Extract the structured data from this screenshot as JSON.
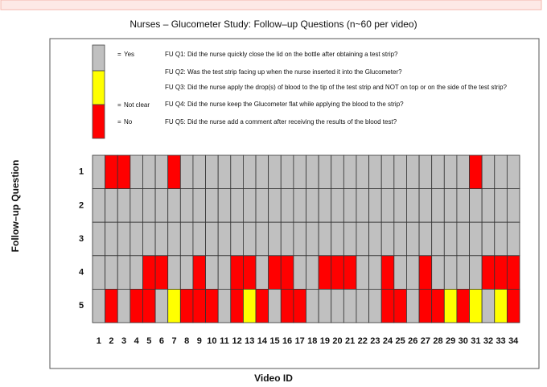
{
  "chart_data": {
    "type": "heatmap",
    "title": "Nurses – Glucometer Study: Follow–up Questions (n~60 per video)",
    "xlabel": "Video ID",
    "ylabel": "Follow–up Question",
    "x": [
      1,
      2,
      3,
      4,
      5,
      6,
      7,
      8,
      9,
      10,
      11,
      12,
      13,
      14,
      15,
      16,
      17,
      18,
      19,
      20,
      21,
      22,
      23,
      24,
      25,
      26,
      27,
      28,
      29,
      30,
      31,
      32,
      33,
      34
    ],
    "y": [
      1,
      2,
      3,
      4,
      5
    ],
    "legend_symbol": "=",
    "legend": [
      {
        "name": "Yes",
        "color": "#c0c0c0"
      },
      {
        "name": "Not clear",
        "color": "#ffff00"
      },
      {
        "name": "No",
        "color": "#ff0000"
      }
    ],
    "questions": [
      "FU Q1: Did the nurse quickly close the lid on the bottle after obtaining a test strip?",
      "FU Q2: Was the test strip facing up when the nurse inserted it into the Glucometer?",
      "FU Q3: Did the nurse apply the drop(s) of blood to the tip of the test strip and NOT on top or on the side of the test strip?",
      "FU Q4: Did the nurse keep the Glucometer flat while applying the blood to the strip?",
      "FU Q5: Did the nurse add a comment after receiving the results of the blood test?"
    ],
    "z": [
      [
        "Yes",
        "No",
        "No",
        "Yes",
        "Yes",
        "Yes",
        "No",
        "Yes",
        "Yes",
        "Yes",
        "Yes",
        "Yes",
        "Yes",
        "Yes",
        "Yes",
        "Yes",
        "Yes",
        "Yes",
        "Yes",
        "Yes",
        "Yes",
        "Yes",
        "Yes",
        "Yes",
        "Yes",
        "Yes",
        "Yes",
        "Yes",
        "Yes",
        "Yes",
        "No",
        "Yes",
        "Yes",
        "Yes"
      ],
      [
        "Yes",
        "Yes",
        "Yes",
        "Yes",
        "Yes",
        "Yes",
        "Yes",
        "Yes",
        "Yes",
        "Yes",
        "Yes",
        "Yes",
        "Yes",
        "Yes",
        "Yes",
        "Yes",
        "Yes",
        "Yes",
        "Yes",
        "Yes",
        "Yes",
        "Yes",
        "Yes",
        "Yes",
        "Yes",
        "Yes",
        "Yes",
        "Yes",
        "Yes",
        "Yes",
        "Yes",
        "Yes",
        "Yes",
        "Yes"
      ],
      [
        "Yes",
        "Yes",
        "Yes",
        "Yes",
        "Yes",
        "Yes",
        "Yes",
        "Yes",
        "Yes",
        "Yes",
        "Yes",
        "Yes",
        "Yes",
        "Yes",
        "Yes",
        "Yes",
        "Yes",
        "Yes",
        "Yes",
        "Yes",
        "Yes",
        "Yes",
        "Yes",
        "Yes",
        "Yes",
        "Yes",
        "Yes",
        "Yes",
        "Yes",
        "Yes",
        "Yes",
        "Yes",
        "Yes",
        "Yes"
      ],
      [
        "Yes",
        "Yes",
        "Yes",
        "Yes",
        "No",
        "No",
        "Yes",
        "Yes",
        "No",
        "Yes",
        "Yes",
        "No",
        "No",
        "Yes",
        "No",
        "No",
        "Yes",
        "Yes",
        "No",
        "No",
        "No",
        "Yes",
        "Yes",
        "No",
        "Yes",
        "Yes",
        "No",
        "Yes",
        "Yes",
        "Yes",
        "Yes",
        "No",
        "No",
        "No"
      ],
      [
        "Yes",
        "No",
        "Yes",
        "No",
        "No",
        "Yes",
        "Not clear",
        "No",
        "No",
        "No",
        "Yes",
        "No",
        "Not clear",
        "No",
        "Yes",
        "No",
        "No",
        "Yes",
        "Yes",
        "Yes",
        "Yes",
        "Yes",
        "Yes",
        "No",
        "No",
        "Yes",
        "No",
        "No",
        "Not clear",
        "No",
        "Not clear",
        "Yes",
        "Not clear",
        "No"
      ]
    ]
  }
}
